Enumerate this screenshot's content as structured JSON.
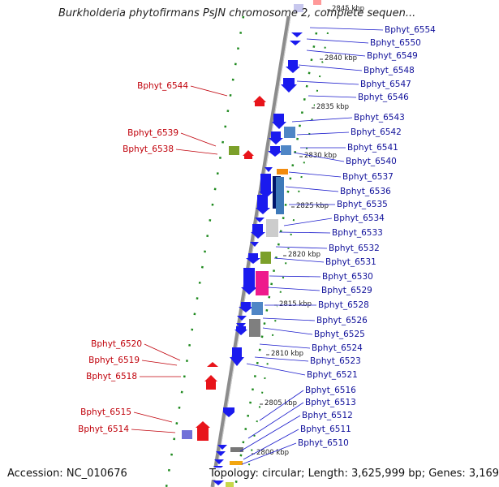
{
  "header": {
    "title": "Burkholderia phytofirmans PsJN chromosome 2, complete sequen..."
  },
  "footer": {
    "accession": "Accession: NC_010676",
    "topology": "Topology: circular; Length: 3,625,999 bp; Genes: 3,169"
  },
  "colors": {
    "forward_gene": "#e8141a",
    "reverse_gene": "#1a1aee",
    "left_label": "#c0000a",
    "right_label": "#10109a",
    "backbone": "#8c8c8c",
    "dotted_track": "#1f8a1f"
  },
  "ruler": {
    "ticks": [
      {
        "label": "2845 kbp"
      },
      {
        "label": "2840 kbp"
      },
      {
        "label": "2835 kbp"
      },
      {
        "label": "2830 kbp"
      },
      {
        "label": "2825 kbp"
      },
      {
        "label": "2820 kbp"
      },
      {
        "label": "2815 kbp"
      },
      {
        "label": "2810 kbp"
      },
      {
        "label": "2805 kbp"
      },
      {
        "label": "2800 kbp"
      }
    ]
  },
  "labels_left": [
    {
      "name": "Bphyt_6544"
    },
    {
      "name": "Bphyt_6539"
    },
    {
      "name": "Bphyt_6538"
    },
    {
      "name": "Bphyt_6520"
    },
    {
      "name": "Bphyt_6519"
    },
    {
      "name": "Bphyt_6518"
    },
    {
      "name": "Bphyt_6515"
    },
    {
      "name": "Bphyt_6514"
    }
  ],
  "labels_right": [
    {
      "name": "Bphyt_6554"
    },
    {
      "name": "Bphyt_6550"
    },
    {
      "name": "Bphyt_6549"
    },
    {
      "name": "Bphyt_6548"
    },
    {
      "name": "Bphyt_6547"
    },
    {
      "name": "Bphyt_6546"
    },
    {
      "name": "Bphyt_6543"
    },
    {
      "name": "Bphyt_6542"
    },
    {
      "name": "Bphyt_6541"
    },
    {
      "name": "Bphyt_6540"
    },
    {
      "name": "Bphyt_6537"
    },
    {
      "name": "Bphyt_6536"
    },
    {
      "name": "Bphyt_6535"
    },
    {
      "name": "Bphyt_6534"
    },
    {
      "name": "Bphyt_6533"
    },
    {
      "name": "Bphyt_6532"
    },
    {
      "name": "Bphyt_6531"
    },
    {
      "name": "Bphyt_6530"
    },
    {
      "name": "Bphyt_6529"
    },
    {
      "name": "Bphyt_6528"
    },
    {
      "name": "Bphyt_6526"
    },
    {
      "name": "Bphyt_6525"
    },
    {
      "name": "Bphyt_6524"
    },
    {
      "name": "Bphyt_6523"
    },
    {
      "name": "Bphyt_6521"
    },
    {
      "name": "Bphyt_6516"
    },
    {
      "name": "Bphyt_6513"
    },
    {
      "name": "Bphyt_6512"
    },
    {
      "name": "Bphyt_6511"
    },
    {
      "name": "Bphyt_6510"
    }
  ]
}
